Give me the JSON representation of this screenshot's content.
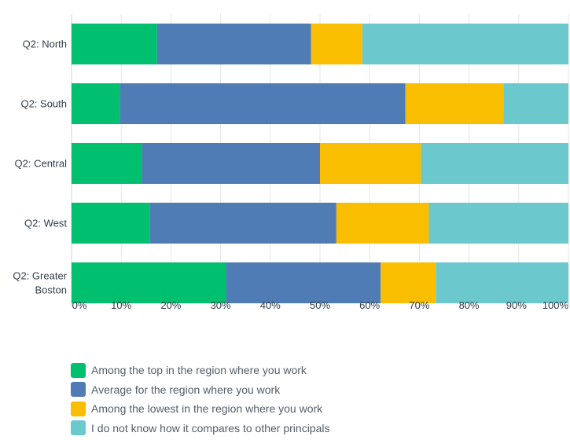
{
  "chart_data": {
    "type": "bar",
    "orientation": "horizontal",
    "stacked": true,
    "categories": [
      [
        "Q2: North"
      ],
      [
        "Q2: South"
      ],
      [
        "Q2: Central"
      ],
      [
        "Q2: West"
      ],
      [
        "Q2: Greater",
        "Boston"
      ]
    ],
    "series": [
      {
        "name": "Among the top in the region where you work",
        "color": "#00bf6f",
        "values": [
          17.2,
          9.8,
          14.1,
          15.7,
          31.1
        ]
      },
      {
        "name": "Average for the region where you work",
        "color": "#507cb6",
        "values": [
          31.0,
          57.4,
          35.9,
          37.6,
          31.1
        ]
      },
      {
        "name": "Among the lowest in the region where you work",
        "color": "#f9be00",
        "values": [
          10.3,
          19.7,
          20.3,
          18.6,
          11.1
        ]
      },
      {
        "name": "I do not know how it compares to other principals",
        "color": "#6bc8cd",
        "values": [
          41.5,
          13.1,
          29.7,
          28.1,
          26.7
        ]
      }
    ],
    "x_ticks": [
      "0%",
      "10%",
      "20%",
      "30%",
      "40%",
      "50%",
      "60%",
      "70%",
      "80%",
      "90%",
      "100%"
    ],
    "xlim": [
      0,
      100
    ],
    "grid": "vertical",
    "legend_position": "bottom-left"
  }
}
